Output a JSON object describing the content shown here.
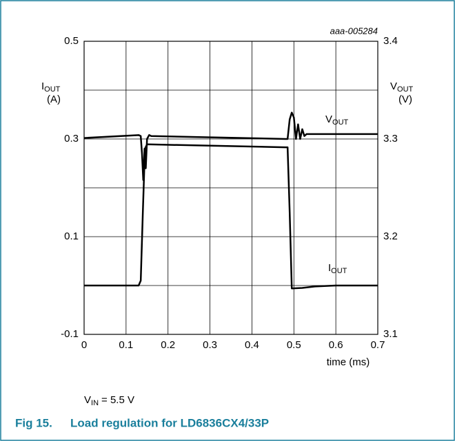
{
  "chart_data": {
    "type": "line",
    "title": "Load regulation for LD6836CX4/33P",
    "figure_number": "Fig 15.",
    "figure_id": "aaa-005284",
    "xlabel": "time (ms)",
    "ylabel": {
      "main": "I",
      "sub": "OUT",
      "unit": "(A)"
    },
    "y2label": {
      "main": "V",
      "sub": "OUT",
      "unit": "(V)"
    },
    "condition": {
      "main": "V",
      "sub": "IN",
      "rest": "= 5.5 V"
    },
    "xlim": [
      0,
      0.7
    ],
    "xticks": [
      0,
      0.1,
      0.2,
      0.3,
      0.4,
      0.5,
      0.6,
      0.7
    ],
    "ylim": [
      -0.1,
      0.5
    ],
    "yticks": [
      -0.1,
      0.1,
      0.3,
      0.5
    ],
    "minor_yticks": [
      0,
      0.2,
      0.4
    ],
    "y2lim": [
      3.1,
      3.4
    ],
    "y2ticks": [
      3.1,
      3.2,
      3.3,
      3.4
    ],
    "grid": true,
    "series": [
      {
        "name": "IOUT",
        "label": {
          "main": "I",
          "sub": "OUT"
        },
        "color": "#000000",
        "x": [
          0,
          0.13,
          0.135,
          0.14,
          0.145,
          0.15,
          0.48,
          0.485,
          0.49,
          0.495,
          0.52,
          0.55,
          0.6,
          0.7
        ],
        "values": [
          0,
          0,
          0.01,
          0.15,
          0.28,
          0.289,
          0.283,
          0.283,
          0.15,
          -0.006,
          -0.005,
          -0.002,
          0,
          0
        ]
      },
      {
        "name": "VOUT",
        "label": {
          "main": "V",
          "sub": "OUT"
        },
        "color": "#000000",
        "axis": "y2",
        "x": [
          0,
          0.13,
          0.135,
          0.138,
          0.141,
          0.144,
          0.147,
          0.15,
          0.155,
          0.16,
          0.48,
          0.485,
          0.49,
          0.495,
          0.5,
          0.505,
          0.51,
          0.515,
          0.52,
          0.525,
          0.53,
          0.7
        ],
        "values": [
          3.301,
          3.304,
          3.303,
          3.285,
          3.258,
          3.29,
          3.27,
          3.3,
          3.304,
          3.303,
          3.3,
          3.3,
          3.32,
          3.327,
          3.322,
          3.3,
          3.315,
          3.3,
          3.31,
          3.303,
          3.305,
          3.305
        ]
      }
    ]
  }
}
